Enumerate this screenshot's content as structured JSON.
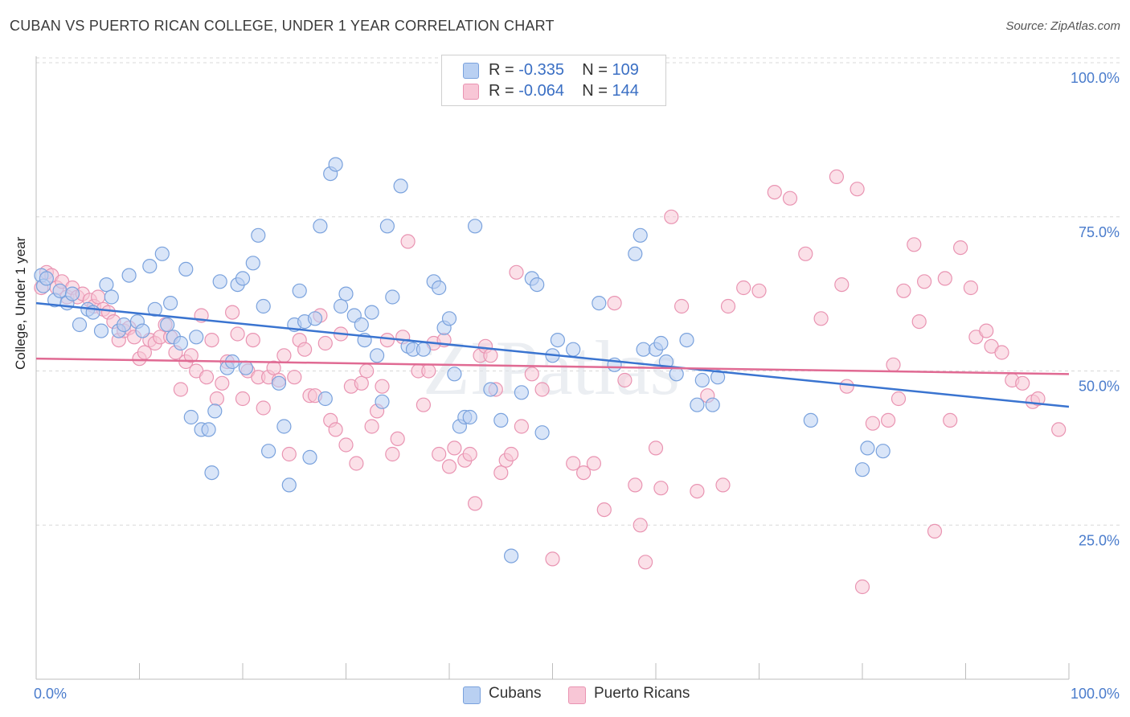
{
  "title": "CUBAN VS PUERTO RICAN COLLEGE, UNDER 1 YEAR CORRELATION CHART",
  "source": "Source: ZipAtlas.com",
  "watermark": "ZIPatlas",
  "legend_stats": [
    {
      "r_label": "R =",
      "r_value": "-0.335",
      "n_label": "N =",
      "n_value": "109"
    },
    {
      "r_label": "R =",
      "r_value": "-0.064",
      "n_label": "N =",
      "n_value": "144"
    }
  ],
  "legend_series": [
    "Cubans",
    "Puerto Ricans"
  ],
  "colors": {
    "cubans_fill": "#b9d0f2",
    "cubans_stroke": "#7aa2dd",
    "cubans_line": "#3a74d0",
    "pr_fill": "#f8c6d6",
    "pr_stroke": "#e994b2",
    "pr_line": "#e06a93",
    "tick_label": "#4a7ccc",
    "grid": "#d8d8d8"
  },
  "chart_data": {
    "type": "scatter",
    "title": "CUBAN VS PUERTO RICAN COLLEGE, UNDER 1 YEAR CORRELATION CHART",
    "xlabel": "",
    "ylabel": "College, Under 1 year",
    "xlim": [
      0,
      100
    ],
    "ylim": [
      0,
      105
    ],
    "x_tick_labels": [
      "0.0%",
      "100.0%"
    ],
    "y_tick_labels": [
      "25.0%",
      "50.0%",
      "75.0%",
      "100.0%"
    ],
    "y_ticks": [
      25,
      50,
      75,
      100
    ],
    "grid": true,
    "legend_position": "top-center",
    "series": [
      {
        "name": "Cubans",
        "trend": {
          "x": [
            0,
            100
          ],
          "y": [
            61.0,
            44.2
          ]
        },
        "points": [
          [
            0.5,
            65.5
          ],
          [
            0.7,
            63.8
          ],
          [
            1.0,
            65.0
          ],
          [
            1.8,
            61.5
          ],
          [
            2.3,
            63.0
          ],
          [
            3.0,
            61.0
          ],
          [
            3.5,
            62.5
          ],
          [
            4.2,
            57.5
          ],
          [
            5.0,
            60.0
          ],
          [
            5.5,
            59.5
          ],
          [
            6.3,
            56.5
          ],
          [
            6.8,
            64.0
          ],
          [
            7.3,
            62.0
          ],
          [
            8.0,
            56.5
          ],
          [
            8.5,
            57.5
          ],
          [
            9.0,
            65.5
          ],
          [
            9.8,
            58.0
          ],
          [
            10.3,
            56.5
          ],
          [
            11.0,
            67.0
          ],
          [
            11.5,
            60.0
          ],
          [
            12.2,
            69.0
          ],
          [
            12.7,
            57.5
          ],
          [
            13.0,
            61.0
          ],
          [
            13.3,
            55.5
          ],
          [
            14.0,
            54.5
          ],
          [
            14.5,
            66.5
          ],
          [
            15.0,
            42.5
          ],
          [
            15.5,
            55.5
          ],
          [
            16.0,
            40.5
          ],
          [
            16.7,
            40.5
          ],
          [
            17.0,
            33.5
          ],
          [
            17.3,
            43.5
          ],
          [
            17.8,
            64.5
          ],
          [
            18.5,
            50.5
          ],
          [
            19.0,
            51.5
          ],
          [
            19.5,
            64.0
          ],
          [
            20.0,
            65.0
          ],
          [
            20.3,
            50.5
          ],
          [
            21.0,
            67.5
          ],
          [
            21.5,
            72.0
          ],
          [
            22.0,
            60.5
          ],
          [
            22.5,
            37.0
          ],
          [
            23.5,
            48.0
          ],
          [
            24.0,
            41.0
          ],
          [
            24.5,
            31.5
          ],
          [
            25.0,
            57.5
          ],
          [
            25.5,
            63.0
          ],
          [
            26.0,
            58.0
          ],
          [
            26.5,
            36.0
          ],
          [
            27.0,
            58.5
          ],
          [
            27.5,
            73.5
          ],
          [
            28.0,
            45.5
          ],
          [
            28.5,
            82.0
          ],
          [
            29.0,
            83.5
          ],
          [
            29.5,
            60.5
          ],
          [
            30.0,
            62.5
          ],
          [
            30.8,
            59.0
          ],
          [
            31.5,
            57.5
          ],
          [
            31.8,
            55.0
          ],
          [
            32.5,
            59.5
          ],
          [
            33.0,
            52.5
          ],
          [
            33.5,
            45.0
          ],
          [
            34.0,
            73.5
          ],
          [
            34.5,
            62.0
          ],
          [
            35.3,
            80.0
          ],
          [
            36.0,
            54.0
          ],
          [
            36.5,
            53.5
          ],
          [
            37.5,
            53.5
          ],
          [
            38.5,
            64.5
          ],
          [
            39.0,
            63.5
          ],
          [
            39.5,
            57.0
          ],
          [
            40.0,
            58.5
          ],
          [
            40.5,
            49.5
          ],
          [
            41.0,
            41.0
          ],
          [
            41.5,
            42.5
          ],
          [
            42.0,
            42.5
          ],
          [
            42.5,
            73.5
          ],
          [
            44.0,
            47.0
          ],
          [
            45.0,
            42.0
          ],
          [
            46.0,
            20.0
          ],
          [
            47.0,
            46.5
          ],
          [
            48.0,
            65.0
          ],
          [
            48.5,
            64.0
          ],
          [
            49.0,
            40.0
          ],
          [
            50.0,
            52.5
          ],
          [
            50.5,
            55.0
          ],
          [
            52.0,
            53.5
          ],
          [
            54.5,
            61.0
          ],
          [
            56.0,
            51.0
          ],
          [
            58.0,
            69.0
          ],
          [
            58.5,
            72.0
          ],
          [
            58.8,
            53.5
          ],
          [
            60.0,
            53.5
          ],
          [
            60.5,
            54.5
          ],
          [
            61.0,
            51.5
          ],
          [
            62.0,
            49.5
          ],
          [
            63.0,
            55.0
          ],
          [
            64.0,
            44.5
          ],
          [
            64.5,
            48.5
          ],
          [
            65.5,
            44.5
          ],
          [
            66.0,
            49.0
          ],
          [
            75.0,
            42.0
          ],
          [
            80.0,
            34.0
          ],
          [
            80.5,
            37.5
          ],
          [
            82.0,
            37.0
          ]
        ]
      },
      {
        "name": "Puerto Ricans",
        "trend": {
          "x": [
            0,
            100
          ],
          "y": [
            52.0,
            49.5
          ]
        },
        "points": [
          [
            0.5,
            63.5
          ],
          [
            1.0,
            66.0
          ],
          [
            1.5,
            65.5
          ],
          [
            2.0,
            63.5
          ],
          [
            2.5,
            64.5
          ],
          [
            3.0,
            62.0
          ],
          [
            3.5,
            63.5
          ],
          [
            4.0,
            62.0
          ],
          [
            4.5,
            62.5
          ],
          [
            5.2,
            61.5
          ],
          [
            5.6,
            60.5
          ],
          [
            6.0,
            62.0
          ],
          [
            6.5,
            60.0
          ],
          [
            7.0,
            59.5
          ],
          [
            7.5,
            58.0
          ],
          [
            8.0,
            55.0
          ],
          [
            8.5,
            56.5
          ],
          [
            9.0,
            57.0
          ],
          [
            9.5,
            55.5
          ],
          [
            10.0,
            52.0
          ],
          [
            10.5,
            53.0
          ],
          [
            11.0,
            55.0
          ],
          [
            11.5,
            54.5
          ],
          [
            12.0,
            55.5
          ],
          [
            12.5,
            57.5
          ],
          [
            13.0,
            55.5
          ],
          [
            13.5,
            53.0
          ],
          [
            14.0,
            47.0
          ],
          [
            14.5,
            51.5
          ],
          [
            15.0,
            52.5
          ],
          [
            15.5,
            50.0
          ],
          [
            16.0,
            59.0
          ],
          [
            16.5,
            49.0
          ],
          [
            17.0,
            55.0
          ],
          [
            17.5,
            45.5
          ],
          [
            18.0,
            48.0
          ],
          [
            18.5,
            51.5
          ],
          [
            19.0,
            59.5
          ],
          [
            19.5,
            56.0
          ],
          [
            20.0,
            45.5
          ],
          [
            20.5,
            50.0
          ],
          [
            21.0,
            55.0
          ],
          [
            21.5,
            49.0
          ],
          [
            22.0,
            44.0
          ],
          [
            22.5,
            49.0
          ],
          [
            23.0,
            50.5
          ],
          [
            23.5,
            48.5
          ],
          [
            24.0,
            52.5
          ],
          [
            24.5,
            36.5
          ],
          [
            25.0,
            49.0
          ],
          [
            25.5,
            55.0
          ],
          [
            26.0,
            53.5
          ],
          [
            26.5,
            46.0
          ],
          [
            27.0,
            46.0
          ],
          [
            27.5,
            59.0
          ],
          [
            28.0,
            54.5
          ],
          [
            28.5,
            42.0
          ],
          [
            29.0,
            40.5
          ],
          [
            29.5,
            56.0
          ],
          [
            30.0,
            38.0
          ],
          [
            30.5,
            47.5
          ],
          [
            31.0,
            35.0
          ],
          [
            31.5,
            48.0
          ],
          [
            32.0,
            50.0
          ],
          [
            32.5,
            41.0
          ],
          [
            33.0,
            43.5
          ],
          [
            33.5,
            47.5
          ],
          [
            34.0,
            55.0
          ],
          [
            34.5,
            36.5
          ],
          [
            35.0,
            39.0
          ],
          [
            35.5,
            55.5
          ],
          [
            36.0,
            71.0
          ],
          [
            37.0,
            50.0
          ],
          [
            37.5,
            44.5
          ],
          [
            38.0,
            50.0
          ],
          [
            38.5,
            54.5
          ],
          [
            39.0,
            36.5
          ],
          [
            39.5,
            55.0
          ],
          [
            40.0,
            34.5
          ],
          [
            40.5,
            37.5
          ],
          [
            41.5,
            35.5
          ],
          [
            42.0,
            36.5
          ],
          [
            42.5,
            28.5
          ],
          [
            43.0,
            52.5
          ],
          [
            43.5,
            54.0
          ],
          [
            44.0,
            52.5
          ],
          [
            44.5,
            47.0
          ],
          [
            45.0,
            33.5
          ],
          [
            45.5,
            35.5
          ],
          [
            46.0,
            36.5
          ],
          [
            46.5,
            66.0
          ],
          [
            47.0,
            41.0
          ],
          [
            48.0,
            49.5
          ],
          [
            49.0,
            47.0
          ],
          [
            50.0,
            19.5
          ],
          [
            52.0,
            35.0
          ],
          [
            53.0,
            33.5
          ],
          [
            54.0,
            35.0
          ],
          [
            55.0,
            27.5
          ],
          [
            56.0,
            61.0
          ],
          [
            57.0,
            48.5
          ],
          [
            58.0,
            31.5
          ],
          [
            58.5,
            25.0
          ],
          [
            59.0,
            19.0
          ],
          [
            60.0,
            37.5
          ],
          [
            60.5,
            31.0
          ],
          [
            61.5,
            75.0
          ],
          [
            62.5,
            60.5
          ],
          [
            64.0,
            30.5
          ],
          [
            65.0,
            46.0
          ],
          [
            66.5,
            31.5
          ],
          [
            67.0,
            60.5
          ],
          [
            68.5,
            63.5
          ],
          [
            70.0,
            63.0
          ],
          [
            71.5,
            79.0
          ],
          [
            73.0,
            78.0
          ],
          [
            74.5,
            69.0
          ],
          [
            76.0,
            58.5
          ],
          [
            77.5,
            81.5
          ],
          [
            78.0,
            64.0
          ],
          [
            78.5,
            47.5
          ],
          [
            79.5,
            79.5
          ],
          [
            80.0,
            15.0
          ],
          [
            81.0,
            41.5
          ],
          [
            82.5,
            42.0
          ],
          [
            83.0,
            51.0
          ],
          [
            83.5,
            45.5
          ],
          [
            84.0,
            63.0
          ],
          [
            85.0,
            70.5
          ],
          [
            85.5,
            58.0
          ],
          [
            86.0,
            64.5
          ],
          [
            87.0,
            24.0
          ],
          [
            88.0,
            65.0
          ],
          [
            88.5,
            42.0
          ],
          [
            89.5,
            70.0
          ],
          [
            90.5,
            63.5
          ],
          [
            91.0,
            55.5
          ],
          [
            92.0,
            56.5
          ],
          [
            92.5,
            54.0
          ],
          [
            93.5,
            53.0
          ],
          [
            94.5,
            48.5
          ],
          [
            95.5,
            48.0
          ],
          [
            96.5,
            45.0
          ],
          [
            97.0,
            45.5
          ],
          [
            99.0,
            40.5
          ]
        ]
      }
    ]
  }
}
